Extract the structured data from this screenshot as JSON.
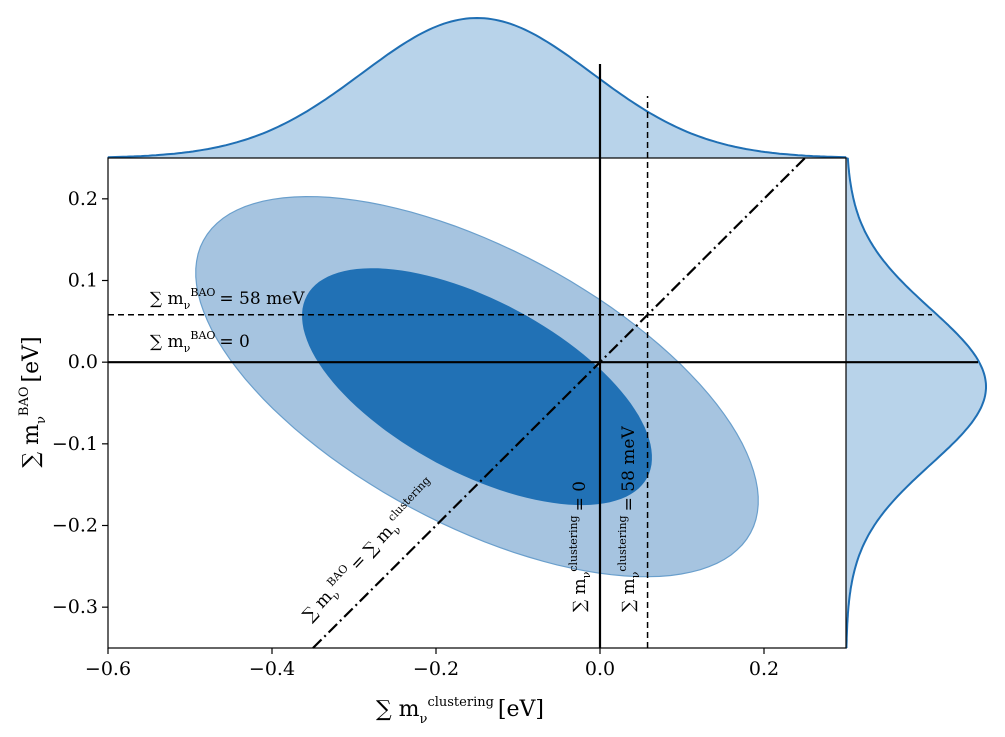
{
  "chart_data": {
    "type": "contour",
    "x_axis": {
      "label_main": "∑ m",
      "label_sub": "ν",
      "label_sup": "clustering",
      "label_unit": "[eV]",
      "xlim": [
        -0.6,
        0.3
      ],
      "ticks": [
        -0.6,
        -0.4,
        -0.2,
        0.0,
        0.2
      ],
      "tick_labels": [
        "−0.6",
        "−0.4",
        "−0.2",
        "0.0",
        "0.2"
      ]
    },
    "y_axis": {
      "label_main": "∑ m",
      "label_sub": "ν",
      "label_sup": "BAO",
      "label_unit": "[eV]",
      "ylim": [
        -0.35,
        0.25
      ],
      "ticks": [
        -0.3,
        -0.2,
        -0.1,
        0.0,
        0.1,
        0.2
      ],
      "tick_labels": [
        "−0.3",
        "−0.2",
        "−0.1",
        "0.0",
        "0.1",
        "0.2"
      ]
    },
    "posterior": {
      "mean": [
        -0.15,
        -0.03
      ],
      "std": [
        0.14,
        0.095
      ],
      "correlation": -0.6,
      "contours": [
        {
          "level": "95%",
          "color": "#a6c4e0",
          "edge": "#6a9fcc"
        },
        {
          "level": "68%",
          "color": "#2171b5",
          "edge": "#2171b5"
        }
      ]
    },
    "marginals": {
      "fill": "#b8d3ea",
      "line": "#1f6fb4"
    },
    "reference_lines": [
      {
        "kind": "horizontal",
        "value": 0.0,
        "style": "solid",
        "label_main": "∑ m",
        "label_sub": "ν",
        "label_sup": "BAO",
        "label_rest": "= 0"
      },
      {
        "kind": "horizontal",
        "value": 0.058,
        "style": "dashed",
        "label_main": "∑ m",
        "label_sub": "ν",
        "label_sup": "BAO",
        "label_rest": "= 58 meV"
      },
      {
        "kind": "vertical",
        "value": 0.0,
        "style": "solid",
        "label_main": "∑ m",
        "label_sub": "ν",
        "label_sup": "clustering",
        "label_rest": "= 0"
      },
      {
        "kind": "vertical",
        "value": 0.058,
        "style": "dashed",
        "label_main": "∑ m",
        "label_sub": "ν",
        "label_sup": "clustering",
        "label_rest": "= 58 meV"
      },
      {
        "kind": "diagonal",
        "style": "dashdot",
        "label_main": "∑ m",
        "label_sub": "ν",
        "label_sup": "BAO",
        "label_mid": "= ∑ m",
        "label_sub2": "ν",
        "label_sup2": "clustering"
      }
    ]
  }
}
